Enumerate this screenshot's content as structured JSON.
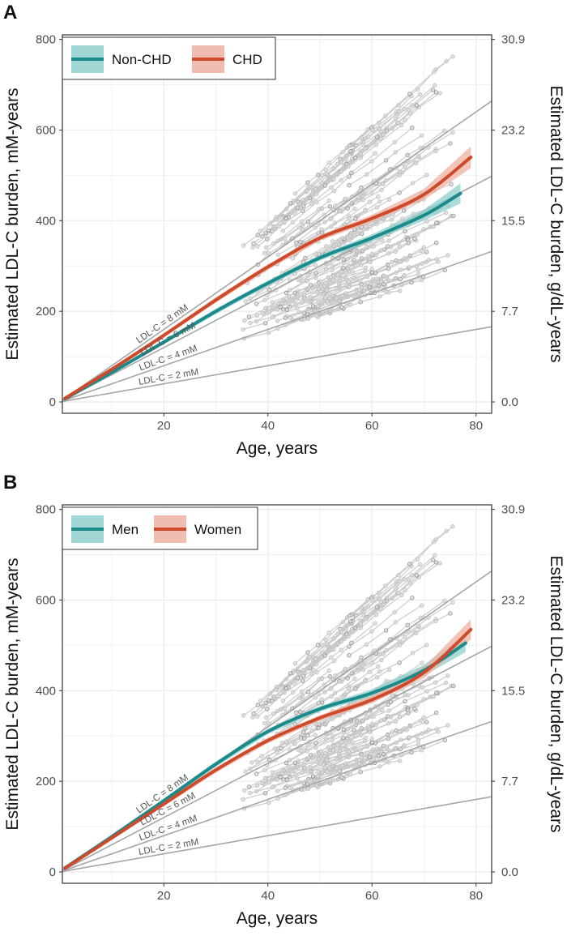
{
  "chart_data": [
    {
      "panel_label": "A",
      "type": "line",
      "xlabel": "Age, years",
      "ylabel": "Estimated LDL-C burden, mM-years",
      "ylabel_right": "Estimated LDL-C burden, g/dL-years",
      "xlim": [
        0.5,
        83
      ],
      "ylim": [
        -25,
        810
      ],
      "x_ticks": [
        20,
        40,
        60,
        80
      ],
      "y_ticks": [
        0,
        200,
        400,
        600,
        800
      ],
      "y_ticks_right": [
        "0.0",
        "7.7",
        "15.5",
        "23.2",
        "30.9"
      ],
      "grid": true,
      "legend_position": "top-left",
      "reference_lines": [
        {
          "label": "LDL-C = 2 mM",
          "slope": 2
        },
        {
          "label": "LDL-C = 4 mM",
          "slope": 4
        },
        {
          "label": "LDL-C = 6 mM",
          "slope": 6
        },
        {
          "label": "LDL-C = 8 mM",
          "slope": 8
        }
      ],
      "series": [
        {
          "name": "Non-CHD",
          "color": "#1b8a8a",
          "band_color": "#8fd0cc",
          "x": [
            1,
            10,
            20,
            30,
            40,
            50,
            60,
            70,
            77
          ],
          "y": [
            7,
            65,
            132,
            200,
            262,
            318,
            362,
            412,
            460
          ],
          "band_halfwidth": [
            3,
            4,
            5,
            6,
            6,
            6,
            8,
            12,
            22
          ]
        },
        {
          "name": "CHD",
          "color": "#cf4a2a",
          "band_color": "#efb2a2",
          "x": [
            1,
            10,
            20,
            30,
            40,
            50,
            60,
            70,
            79
          ],
          "y": [
            8,
            72,
            147,
            225,
            298,
            362,
            405,
            458,
            540
          ],
          "band_halfwidth": [
            3,
            4,
            5,
            6,
            6,
            6,
            8,
            12,
            24
          ]
        }
      ],
      "legend": [
        {
          "label": "Non-CHD"
        },
        {
          "label": "CHD"
        }
      ]
    },
    {
      "panel_label": "B",
      "type": "line",
      "xlabel": "Age, years",
      "ylabel": "Estimated LDL-C burden, mM-years",
      "ylabel_right": "Estimated LDL-C burden, g/dL-years",
      "xlim": [
        0.5,
        83
      ],
      "ylim": [
        -25,
        810
      ],
      "x_ticks": [
        20,
        40,
        60,
        80
      ],
      "y_ticks": [
        0,
        200,
        400,
        600,
        800
      ],
      "y_ticks_right": [
        "0.0",
        "7.7",
        "15.5",
        "23.2",
        "30.9"
      ],
      "grid": true,
      "legend_position": "top-left",
      "reference_lines": [
        {
          "label": "LDL-C = 2 mM",
          "slope": 2
        },
        {
          "label": "LDL-C = 4 mM",
          "slope": 4
        },
        {
          "label": "LDL-C = 6 mM",
          "slope": 6
        },
        {
          "label": "LDL-C = 8 mM",
          "slope": 8
        }
      ],
      "series": [
        {
          "name": "Men",
          "color": "#1b8a8a",
          "band_color": "#8fd0cc",
          "x": [
            1,
            10,
            20,
            30,
            40,
            50,
            60,
            70,
            78
          ],
          "y": [
            9,
            78,
            157,
            238,
            310,
            360,
            395,
            445,
            505
          ],
          "band_halfwidth": [
            3,
            4,
            5,
            6,
            6,
            6,
            8,
            12,
            20
          ]
        },
        {
          "name": "Women",
          "color": "#cf4a2a",
          "band_color": "#efb2a2",
          "x": [
            1,
            10,
            20,
            30,
            40,
            50,
            60,
            70,
            79
          ],
          "y": [
            8,
            75,
            150,
            225,
            290,
            340,
            380,
            440,
            535
          ],
          "band_halfwidth": [
            3,
            4,
            5,
            6,
            6,
            6,
            8,
            12,
            22
          ]
        }
      ],
      "legend": [
        {
          "label": "Men"
        },
        {
          "label": "Women"
        }
      ]
    }
  ]
}
